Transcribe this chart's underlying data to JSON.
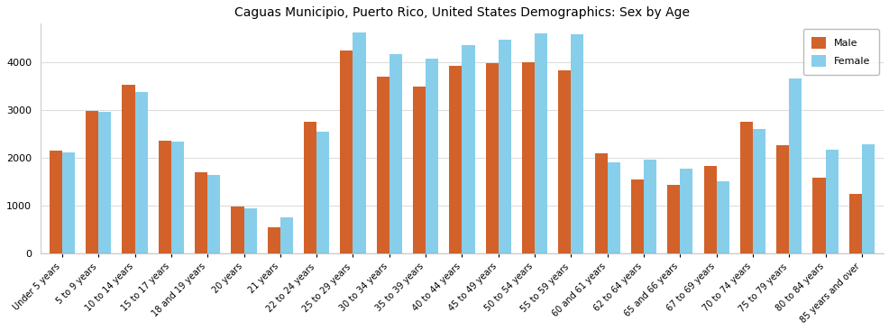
{
  "title": "Caguas Municipio, Puerto Rico, United States Demographics: Sex by Age",
  "categories": [
    "Under 5 years",
    "5 to 9 years",
    "10 to 14 years",
    "15 to 17 years",
    "18 and 19 years",
    "20 years",
    "21 years",
    "22 to 24 years",
    "25 to 29 years",
    "30 to 34 years",
    "35 to 39 years",
    "40 to 44 years",
    "45 to 49 years",
    "50 to 54 years",
    "55 to 59 years",
    "60 and 61 years",
    "62 to 64 years",
    "65 and 66 years",
    "67 to 69 years",
    "70 to 74 years",
    "75 to 79 years",
    "80 to 84 years",
    "85 years and over"
  ],
  "male": [
    2150,
    2980,
    3530,
    2360,
    1700,
    980,
    560,
    2760,
    4240,
    3700,
    3490,
    3920,
    3970,
    3990,
    3820,
    2100,
    1555,
    1430,
    1840,
    2750,
    2270,
    1590,
    1240
  ],
  "female": [
    2110,
    2960,
    3370,
    2340,
    1640,
    950,
    760,
    2540,
    4620,
    4170,
    4080,
    4360,
    4470,
    4590,
    4570,
    1900,
    1960,
    1780,
    1510,
    2610,
    3650,
    2170,
    2290
  ],
  "male_color": "#d2622a",
  "female_color": "#87ceeb",
  "plot_bg_color": "#ffffff",
  "fig_bg_color": "#ffffff",
  "ylim": [
    0,
    4800
  ],
  "yticks": [
    0,
    1000,
    2000,
    3000,
    4000
  ],
  "legend_labels": [
    "Male",
    "Female"
  ],
  "title_fontsize": 10,
  "tick_fontsize": 7,
  "bar_width": 0.35
}
